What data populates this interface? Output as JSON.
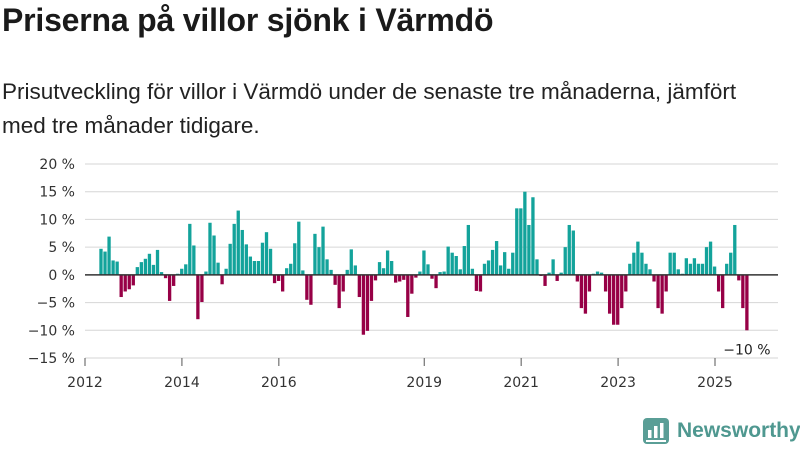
{
  "title": "Priserna på villor sjönk i Värmdö",
  "subtitle": "Prisutveckling för villor i Värmdö under de senaste tre månaderna, jämfört med tre månader tidigare.",
  "brand": {
    "name": "Newsworthy",
    "icon": "newsworthy-logo-icon"
  },
  "colors": {
    "positive": "#13a39b",
    "negative": "#970046",
    "grid": "#d6d6d6",
    "zero": "#333333",
    "brand": "#4f9890"
  },
  "chart_data": {
    "type": "bar",
    "title": "Priserna på villor sjönk i Värmdö",
    "xlabel": "",
    "ylabel": "",
    "ylim": [
      -15,
      20
    ],
    "yticks": [
      -15,
      -10,
      -5,
      0,
      5,
      10,
      15,
      20
    ],
    "ytick_labels": [
      "−15 %",
      "−10 %",
      "−5 %",
      "0 %",
      "5 %",
      "10 %",
      "15 %",
      "20 %"
    ],
    "xlim": [
      2012.0,
      2026.3
    ],
    "xticks": [
      2012,
      2014,
      2016,
      2019,
      2021,
      2023,
      2025
    ],
    "grid": true,
    "start": 2012.33,
    "step": 0.0833,
    "values": [
      4.7,
      4.2,
      6.9,
      2.6,
      2.4,
      -4.0,
      -3.0,
      -2.6,
      -1.9,
      1.4,
      2.3,
      2.9,
      3.8,
      1.8,
      4.5,
      0.5,
      -0.6,
      -4.7,
      -2.0,
      0.2,
      1.1,
      1.9,
      9.2,
      5.3,
      -8.0,
      -4.9,
      0.6,
      9.4,
      7.1,
      2.2,
      -1.7,
      1.1,
      5.6,
      9.2,
      11.6,
      8.1,
      5.5,
      3.3,
      2.5,
      2.5,
      5.8,
      7.7,
      4.7,
      -1.5,
      -1.1,
      -3.0,
      1.2,
      2.0,
      5.7,
      9.6,
      0.8,
      -4.5,
      -5.4,
      7.4,
      5.0,
      8.7,
      2.8,
      0.9,
      -1.8,
      -6.0,
      -3.0,
      0.9,
      4.6,
      1.7,
      -4.0,
      -10.8,
      -10.1,
      -4.7,
      -1.0,
      2.3,
      1.2,
      4.4,
      2.5,
      -1.4,
      -1.2,
      -0.9,
      -7.6,
      -3.4,
      -0.5,
      0.6,
      4.4,
      1.9,
      -0.7,
      -2.4,
      0.5,
      0.6,
      5.1,
      4.0,
      3.4,
      1.0,
      5.2,
      9.0,
      1.1,
      -2.9,
      -3.0,
      2.0,
      2.6,
      4.5,
      6.1,
      1.7,
      4.1,
      1.1,
      4.0,
      12.0,
      12.0,
      15.0,
      9.0,
      14.0,
      2.8,
      -0.2,
      -2.0,
      0.4,
      2.8,
      -1.1,
      0.4,
      5.0,
      9.0,
      8.0,
      -1.2,
      -6.0,
      -7.0,
      -3.0,
      0.2,
      0.6,
      0.4,
      -3.0,
      -7.0,
      -9.0,
      -9.0,
      -6.0,
      -3.0,
      2.0,
      4.0,
      6.0,
      4.0,
      2.0,
      1.0,
      -1.2,
      -6.0,
      -7.0,
      -3.0,
      4.0,
      4.0,
      1.0,
      0.2,
      3.0,
      2.0,
      3.0,
      2.0,
      2.0,
      5.0,
      6.0,
      1.5,
      -3.0,
      -6.0,
      2.0,
      4.0,
      9.0,
      -1.0,
      -6.0,
      -10.0
    ],
    "annotation": {
      "text": "−10 %",
      "value": -10,
      "position": "below-last-bar"
    }
  }
}
